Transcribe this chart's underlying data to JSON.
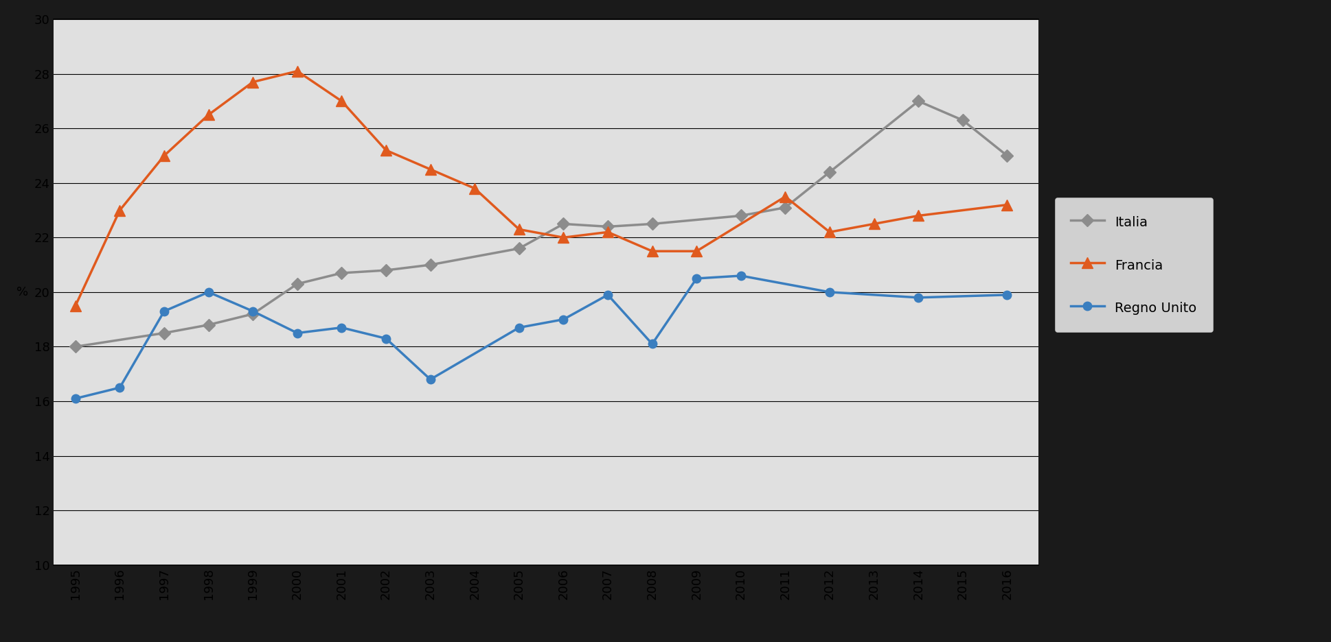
{
  "years": [
    1995,
    1996,
    1997,
    1998,
    1999,
    2000,
    2001,
    2002,
    2003,
    2004,
    2005,
    2006,
    2007,
    2008,
    2009,
    2010,
    2011,
    2012,
    2013,
    2014,
    2015,
    2016
  ],
  "italia": [
    18.0,
    null,
    18.5,
    18.8,
    19.2,
    20.3,
    20.7,
    20.8,
    21.0,
    null,
    21.6,
    22.5,
    22.4,
    22.5,
    null,
    22.8,
    23.1,
    24.4,
    null,
    27.0,
    26.3,
    25.0
  ],
  "francia": [
    19.5,
    23.0,
    25.0,
    26.5,
    27.7,
    28.1,
    27.0,
    25.2,
    24.5,
    23.8,
    22.3,
    22.0,
    22.2,
    21.5,
    21.5,
    null,
    23.5,
    22.2,
    22.5,
    22.8,
    null,
    23.2
  ],
  "regno_unito": [
    16.1,
    16.5,
    19.3,
    20.0,
    19.3,
    18.5,
    18.7,
    18.3,
    16.8,
    null,
    18.7,
    19.0,
    19.9,
    18.1,
    20.5,
    20.6,
    null,
    20.0,
    null,
    19.8,
    null,
    19.9
  ],
  "italia_color": "#8c8c8c",
  "francia_color": "#e05a1e",
  "regno_unito_color": "#3a7ebf",
  "fig_bg_color": "#1a1a1a",
  "plot_bg_color": "#e0e0e0",
  "ylim": [
    10,
    30
  ],
  "yticks": [
    10,
    12,
    14,
    16,
    18,
    20,
    22,
    24,
    26,
    28,
    30
  ],
  "ylabel": "%",
  "grid_color": "#000000",
  "legend_labels": [
    "Italia",
    "Francia",
    "Regno Unito"
  ]
}
